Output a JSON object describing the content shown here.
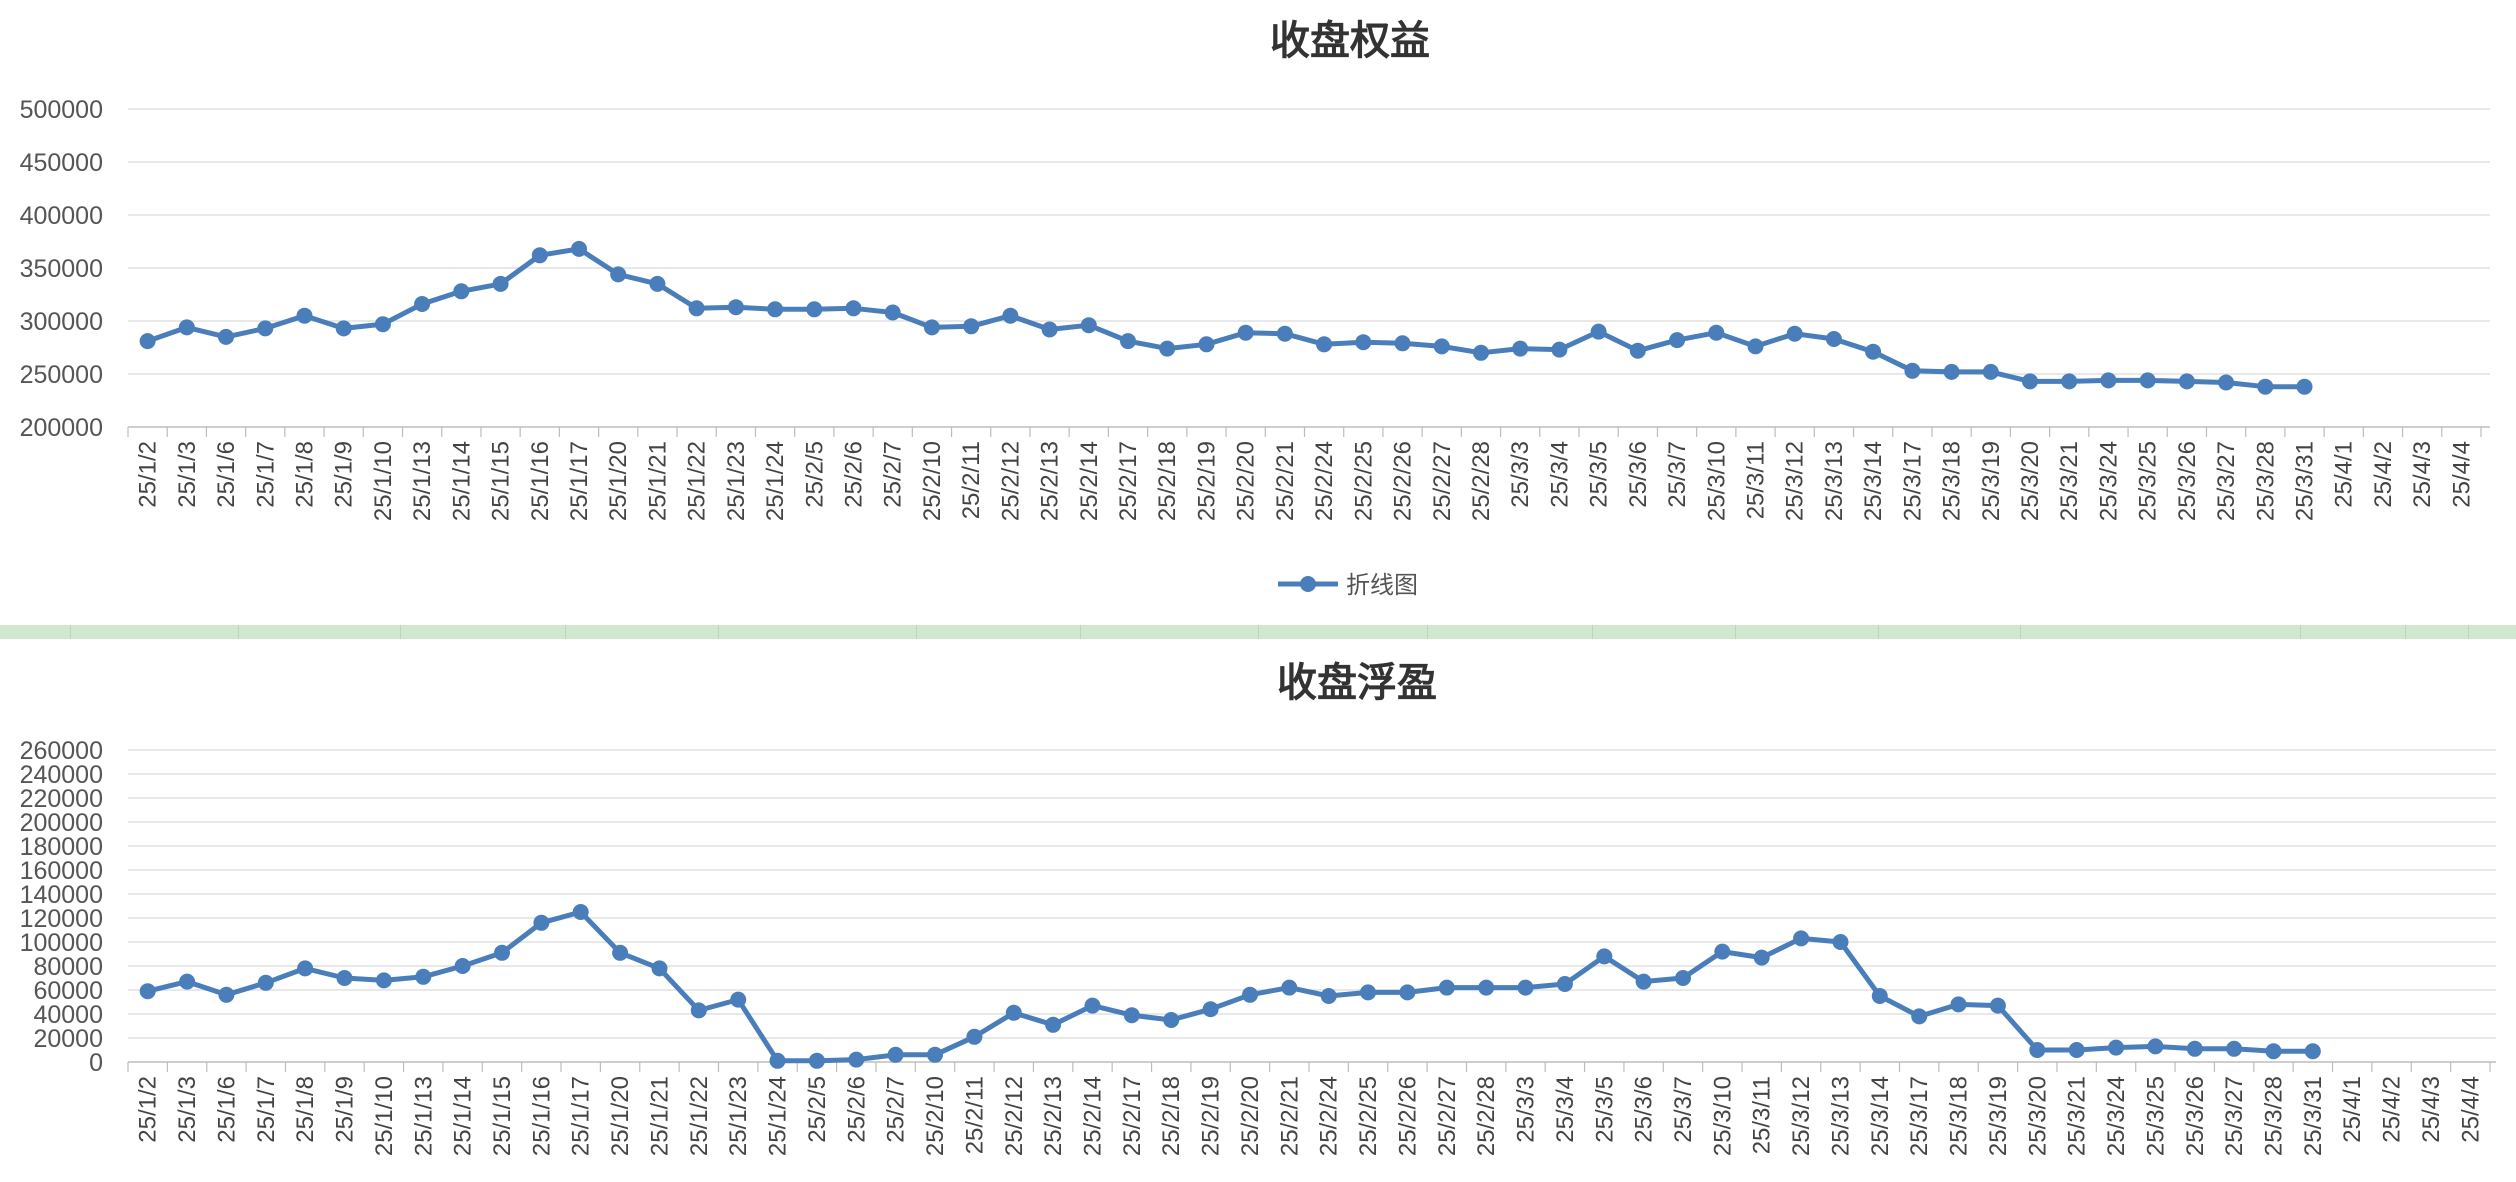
{
  "colors": {
    "line": "#4a7ebb",
    "legend_text": "#555555"
  },
  "chart_data": [
    {
      "type": "line",
      "title": "收盘权益",
      "legend_position": "bottom",
      "legend": [
        "折线图"
      ],
      "grid": true,
      "ylim": [
        200000,
        500000
      ],
      "y_ticks": [
        "200000",
        "250000",
        "300000",
        "350000",
        "400000",
        "450000",
        "500000"
      ],
      "categories": [
        "25/1/2",
        "25/1/3",
        "25/1/6",
        "25/1/7",
        "25/1/8",
        "25/1/9",
        "25/1/10",
        "25/1/13",
        "25/1/14",
        "25/1/15",
        "25/1/16",
        "25/1/17",
        "25/1/20",
        "25/1/21",
        "25/1/22",
        "25/1/23",
        "25/1/24",
        "25/2/5",
        "25/2/6",
        "25/2/7",
        "25/2/10",
        "25/2/11",
        "25/2/12",
        "25/2/13",
        "25/2/14",
        "25/2/17",
        "25/2/18",
        "25/2/19",
        "25/2/20",
        "25/2/21",
        "25/2/24",
        "25/2/25",
        "25/2/26",
        "25/2/27",
        "25/2/28",
        "25/3/3",
        "25/3/4",
        "25/3/5",
        "25/3/6",
        "25/3/7",
        "25/3/10",
        "25/3/11",
        "25/3/12",
        "25/3/13",
        "25/3/14",
        "25/3/17",
        "25/3/18",
        "25/3/19",
        "25/3/20",
        "25/3/21",
        "25/3/24",
        "25/3/25",
        "25/3/26",
        "25/3/27",
        "25/3/28",
        "25/3/31",
        "25/4/1",
        "25/4/2",
        "25/4/3",
        "25/4/4"
      ],
      "series": [
        {
          "name": "折线图",
          "values": [
            281000,
            294000,
            285000,
            293000,
            305000,
            293000,
            297000,
            316000,
            328000,
            335000,
            362000,
            368000,
            344000,
            335000,
            312000,
            313000,
            311000,
            311000,
            312000,
            308000,
            294000,
            295000,
            305000,
            292000,
            296000,
            281000,
            274000,
            278000,
            289000,
            288000,
            278000,
            280000,
            279000,
            276000,
            270000,
            274000,
            273000,
            290000,
            272000,
            282000,
            289000,
            276000,
            288000,
            283000,
            271000,
            253000,
            252000,
            252000,
            243000,
            243000,
            244000,
            244000,
            243000,
            242000,
            238000,
            238000,
            null,
            null,
            null,
            null
          ]
        }
      ]
    },
    {
      "type": "line",
      "title": "收盘浮盈",
      "grid": true,
      "ylim": [
        0,
        260000
      ],
      "y_ticks": [
        "0",
        "20000",
        "40000",
        "60000",
        "80000",
        "100000",
        "120000",
        "140000",
        "160000",
        "180000",
        "200000",
        "220000",
        "240000",
        "260000"
      ],
      "categories": [
        "25/1/2",
        "25/1/3",
        "25/1/6",
        "25/1/7",
        "25/1/8",
        "25/1/9",
        "25/1/10",
        "25/1/13",
        "25/1/14",
        "25/1/15",
        "25/1/16",
        "25/1/17",
        "25/1/20",
        "25/1/21",
        "25/1/22",
        "25/1/23",
        "25/1/24",
        "25/2/5",
        "25/2/6",
        "25/2/7",
        "25/2/10",
        "25/2/11",
        "25/2/12",
        "25/2/13",
        "25/2/14",
        "25/2/17",
        "25/2/18",
        "25/2/19",
        "25/2/20",
        "25/2/21",
        "25/2/24",
        "25/2/25",
        "25/2/26",
        "25/2/27",
        "25/2/28",
        "25/3/3",
        "25/3/4",
        "25/3/5",
        "25/3/6",
        "25/3/7",
        "25/3/10",
        "25/3/11",
        "25/3/12",
        "25/3/13",
        "25/3/14",
        "25/3/17",
        "25/3/18",
        "25/3/19",
        "25/3/20",
        "25/3/21",
        "25/3/24",
        "25/3/25",
        "25/3/26",
        "25/3/27",
        "25/3/28",
        "25/3/31",
        "25/4/1",
        "25/4/2",
        "25/4/3",
        "25/4/4"
      ],
      "series": [
        {
          "values": [
            59000,
            67000,
            56000,
            66000,
            78000,
            70000,
            68000,
            71000,
            80000,
            91000,
            116000,
            125000,
            91000,
            78000,
            43000,
            52000,
            1000,
            1000,
            2000,
            6000,
            6000,
            21000,
            41000,
            31000,
            47000,
            39000,
            35000,
            44000,
            56000,
            62000,
            55000,
            58000,
            58000,
            62000,
            62000,
            62000,
            65000,
            88000,
            67000,
            70000,
            92000,
            87000,
            103000,
            100000,
            55000,
            38000,
            48000,
            47000,
            10000,
            10000,
            12000,
            13000,
            11000,
            11000,
            9000,
            9000,
            null,
            null,
            null,
            null
          ]
        }
      ]
    }
  ]
}
